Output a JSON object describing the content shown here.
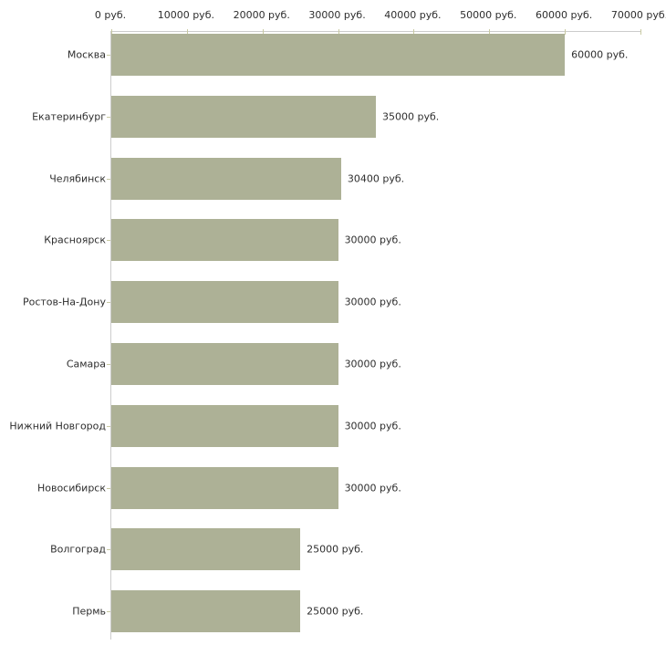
{
  "chart_data": {
    "type": "bar",
    "orientation": "horizontal",
    "title": "",
    "xlabel": "",
    "ylabel": "",
    "categories": [
      "Москва",
      "Екатеринбург",
      "Челябинск",
      "Красноярск",
      "Ростов-На-Дону",
      "Самара",
      "Нижний Новгород",
      "Новосибирск",
      "Волгоград",
      "Пермь"
    ],
    "values": [
      60000,
      35000,
      30400,
      30000,
      30000,
      30000,
      30000,
      30000,
      25000,
      25000
    ],
    "value_labels": [
      "60000 руб.",
      "35000 руб.",
      "30400 руб.",
      "30000 руб.",
      "30000 руб.",
      "30000 руб.",
      "30000 руб.",
      "30000 руб.",
      "25000 руб.",
      "25000 руб."
    ],
    "x_tick_values": [
      0,
      10000,
      20000,
      30000,
      40000,
      50000,
      60000,
      70000
    ],
    "x_tick_labels": [
      "0 руб.",
      "10000 руб.",
      "20000 руб.",
      "30000 руб.",
      "40000 руб.",
      "50000 руб.",
      "60000 руб.",
      "70000 руб."
    ],
    "xlim": [
      0,
      70000
    ],
    "grid": false,
    "legend": "none",
    "bar_color": "#adb196",
    "axis_line_color": "#cccccc",
    "tick_mark_color": "#c9caa3",
    "text_color": "#2e2e2e"
  }
}
